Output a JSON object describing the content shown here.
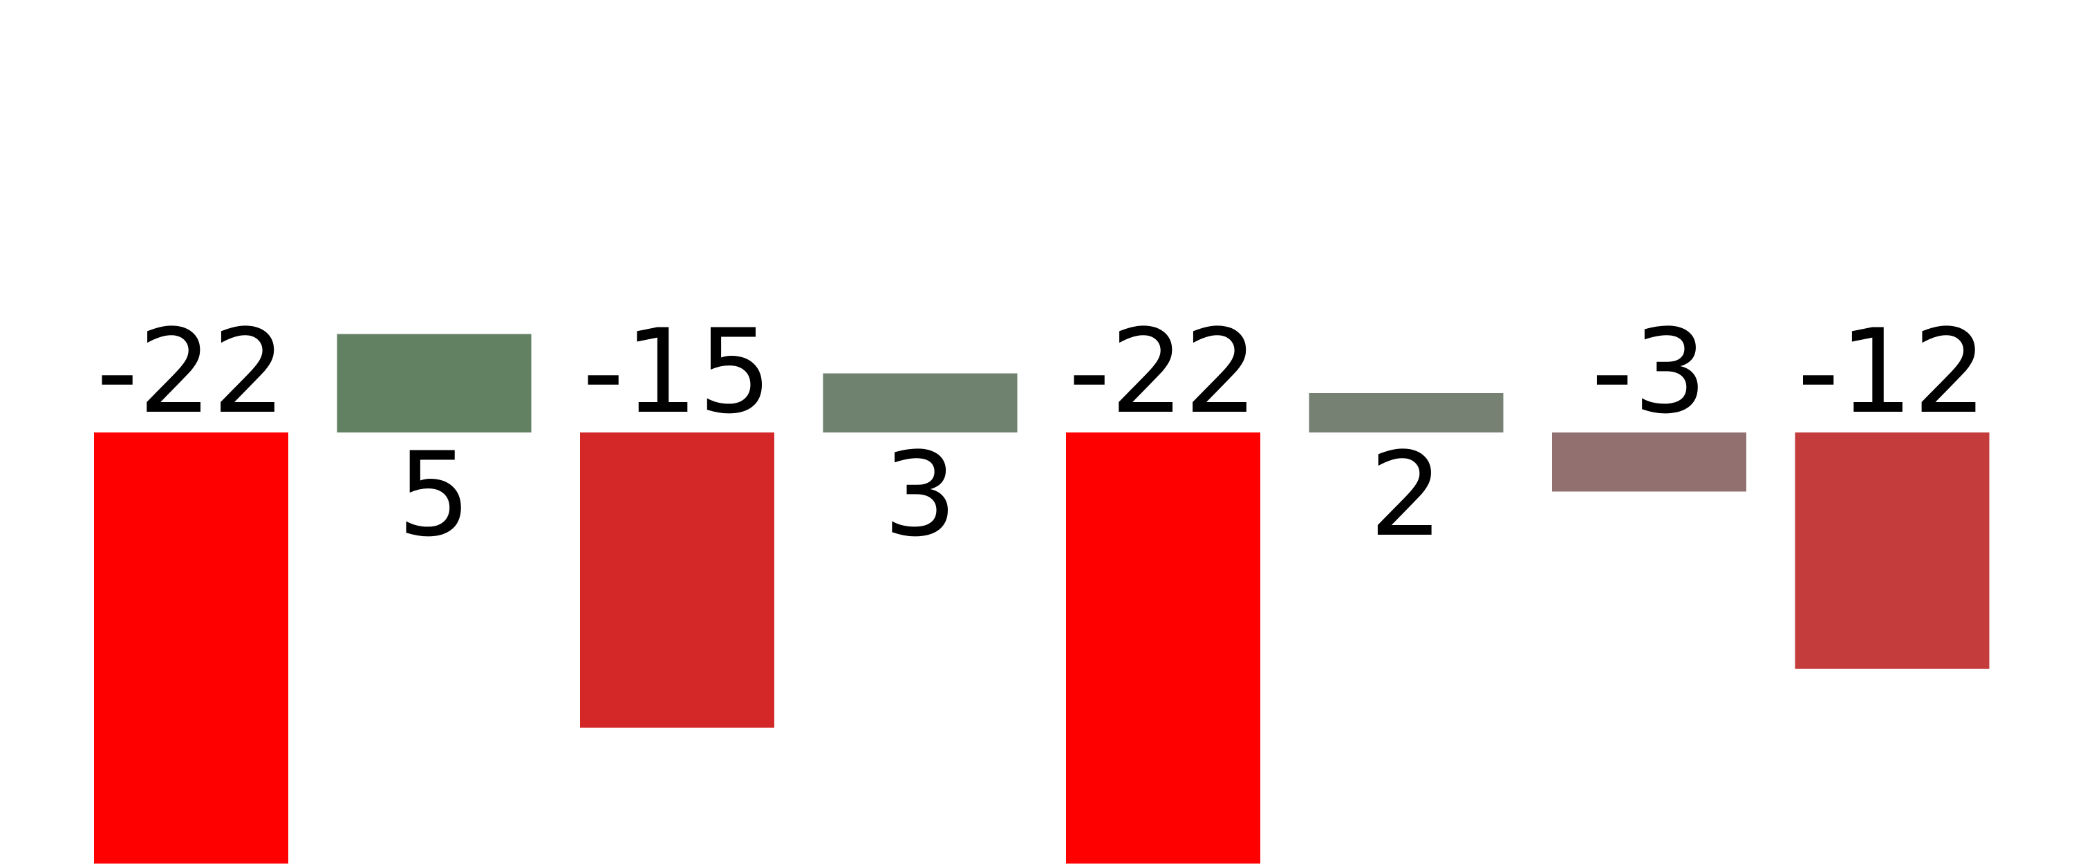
{
  "chart_data": {
    "type": "bar",
    "title": "",
    "xlabel": "",
    "ylabel": "",
    "values": [
      -22,
      5,
      -15,
      3,
      -22,
      2,
      -3,
      -12
    ],
    "value_labels": [
      "-22",
      "5",
      "-15",
      "3",
      "-22",
      "2",
      "-3",
      "-12"
    ],
    "colors": [
      "#ff0000",
      "#628062",
      "#d42727",
      "#6f826f",
      "#ff0000",
      "#768174",
      "#927070",
      "#c43c3c"
    ],
    "ylim": [
      -22,
      22
    ],
    "grid": false,
    "legend": "none"
  }
}
